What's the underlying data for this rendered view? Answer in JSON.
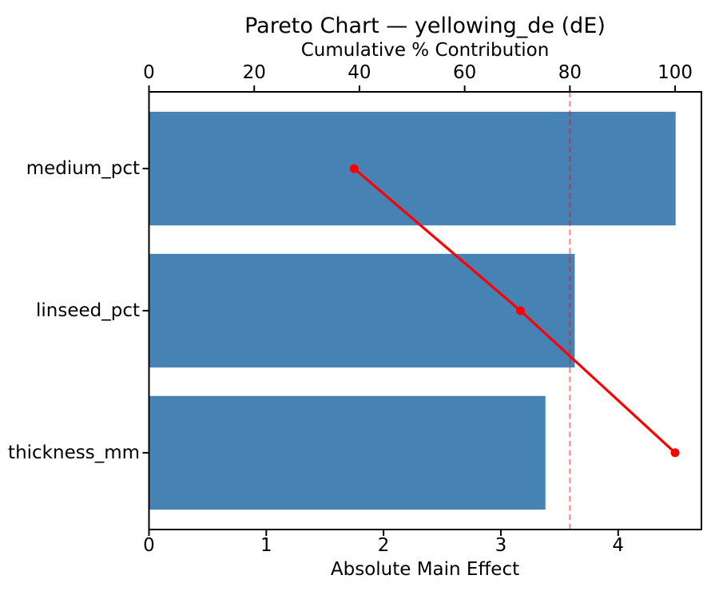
{
  "chart_data": {
    "type": "bar",
    "subtype": "pareto",
    "orientation": "horizontal",
    "title": "Pareto Chart — yellowing_de (dE)",
    "top_axis_label": "Cumulative % Contribution",
    "xlabel": "Absolute Main Effect",
    "categories": [
      "medium_pct",
      "linseed_pct",
      "thickness_mm"
    ],
    "values": [
      4.49,
      3.63,
      3.38
    ],
    "cumulative_pct": [
      39.0,
      70.6,
      100.0
    ],
    "threshold_pct": 80,
    "x_ticks": [
      0,
      1,
      2,
      3,
      4
    ],
    "top_ticks": [
      0,
      20,
      40,
      60,
      80,
      100
    ],
    "xlim": [
      0,
      4.71
    ],
    "top_xlim": [
      0,
      105
    ],
    "grid": false,
    "legend": false,
    "colors": {
      "bar": "#4682b4",
      "cumulative_line": "#ff0000",
      "marker": "#ff0000",
      "threshold_line": "#ff0000",
      "threshold_opacity": 0.5,
      "axis": "#000000",
      "text": "#000000",
      "background": "#ffffff"
    }
  }
}
